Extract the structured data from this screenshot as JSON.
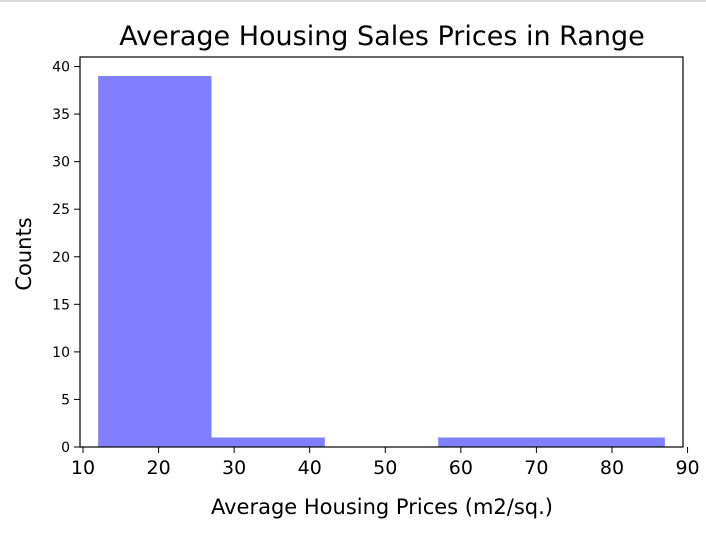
{
  "chart_data": {
    "type": "bar",
    "title": "Average Housing Sales Prices in Range",
    "xlabel": "Average Housing Prices (m2/sq.)",
    "ylabel": "Counts",
    "xlim": [
      9.6,
      89.4
    ],
    "ylim": [
      0,
      41
    ],
    "xticks": [
      10,
      20,
      30,
      40,
      50,
      60,
      70,
      80,
      90
    ],
    "yticks": [
      0,
      5,
      10,
      15,
      20,
      25,
      30,
      35,
      40
    ],
    "bins": [
      {
        "x0": 12,
        "x1": 27,
        "value": 39
      },
      {
        "x0": 27,
        "x1": 42,
        "value": 1
      },
      {
        "x0": 42,
        "x1": 57,
        "value": 0
      },
      {
        "x0": 57,
        "x1": 72,
        "value": 1
      },
      {
        "x0": 72,
        "x1": 87,
        "value": 1
      }
    ],
    "bar_color": "#8080ff",
    "grid": false,
    "legend": false
  }
}
